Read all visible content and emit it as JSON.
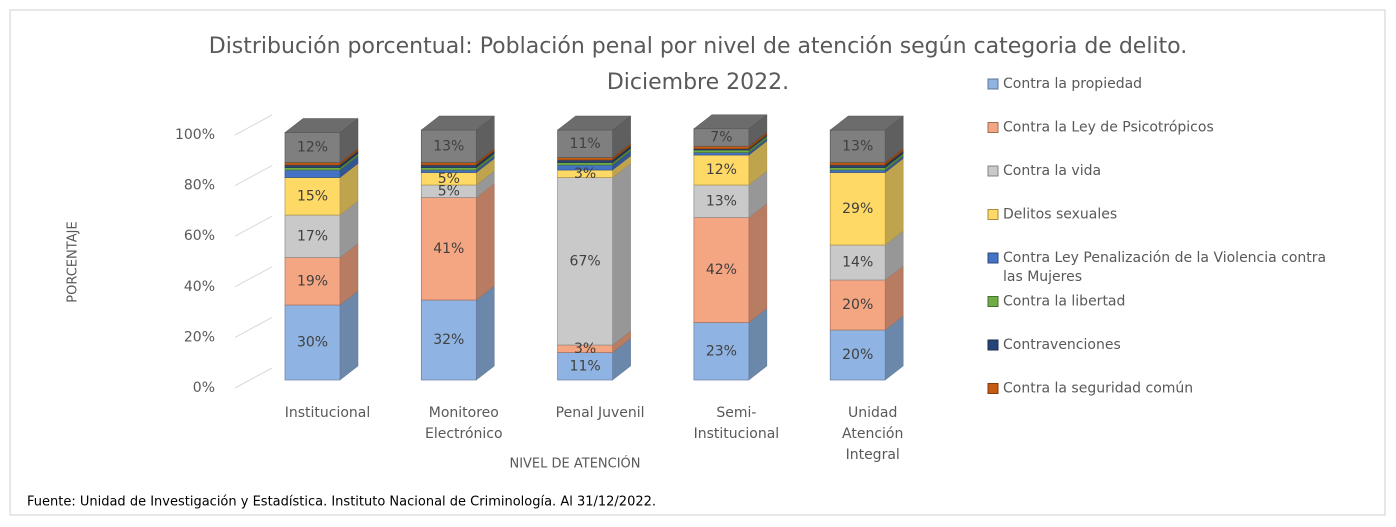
{
  "chart_data": {
    "type": "bar3d_stacked",
    "title": "Distribución porcentual: Población penal por nivel de atención según categoria de delito. Diciembre 2022.",
    "x_label": "NIVEL DE ATENCIÓN",
    "y_label": "PORCENTAJE",
    "source": "Fuente: Unidad de Investigación y Estadística. Instituto Nacional de Criminología. Al 31/12/2022.",
    "categories": [
      "Institucional",
      "Monitoreo Electrónico",
      "Penal Juvenil",
      "Semi-Institucional",
      "Unidad Atención Integral"
    ],
    "ylim": [
      0,
      100
    ],
    "yticks": [
      {
        "value": 0,
        "label": "0%"
      },
      {
        "value": 20,
        "label": "20%"
      },
      {
        "value": 40,
        "label": "40%"
      },
      {
        "value": 60,
        "label": "60%"
      },
      {
        "value": 80,
        "label": "80%"
      },
      {
        "value": 100,
        "label": "100%"
      }
    ],
    "series": [
      {
        "name": "Contra la propiedad",
        "color": "#8fb4e3",
        "values": [
          30,
          32,
          11,
          23,
          20
        ],
        "value_labels": [
          "30%",
          "32%",
          "11%",
          "23%",
          "20%"
        ]
      },
      {
        "name": "Contra la Ley de Psicotrópicos",
        "color": "#f4a582",
        "values": [
          19,
          41,
          3,
          42,
          20
        ],
        "value_labels": [
          "19%",
          "41%",
          "3%",
          "42%",
          "20%"
        ]
      },
      {
        "name": "Contra la vida",
        "color": "#c9c9c9",
        "values": [
          17,
          5,
          67,
          13,
          14
        ],
        "value_labels": [
          "17%",
          "5%",
          "67%",
          "13%",
          "14%"
        ]
      },
      {
        "name": "Delitos sexuales",
        "color": "#ffd966",
        "values": [
          15,
          5,
          3,
          12,
          29
        ],
        "value_labels": [
          "15%",
          "5%",
          "3%",
          "12%",
          "29%"
        ]
      },
      {
        "name": "Contra Ley Penalización de la Violencia contra las Mujeres",
        "color": "#4472c4",
        "values": [
          3,
          1,
          2,
          1,
          1
        ],
        "value_labels": [
          null,
          null,
          null,
          null,
          null
        ]
      },
      {
        "name": "Contra la libertad",
        "color": "#70ad47",
        "values": [
          1,
          1,
          1,
          1,
          1
        ],
        "value_labels": [
          null,
          null,
          null,
          null,
          null
        ]
      },
      {
        "name": "Contravenciones",
        "color": "#264478",
        "values": [
          1,
          1,
          1,
          0.5,
          1
        ],
        "value_labels": [
          null,
          null,
          null,
          null,
          null
        ]
      },
      {
        "name": "Contra la seguridad común",
        "color": "#c55a11",
        "values": [
          1,
          1,
          1,
          1,
          1
        ],
        "value_labels": [
          null,
          null,
          null,
          null,
          null
        ]
      },
      {
        "color": "#7f7f7f",
        "values": [
          12,
          13,
          11,
          7,
          13
        ],
        "value_labels": [
          "12%",
          "13%",
          "11%",
          "7%",
          "13%"
        ]
      }
    ]
  }
}
